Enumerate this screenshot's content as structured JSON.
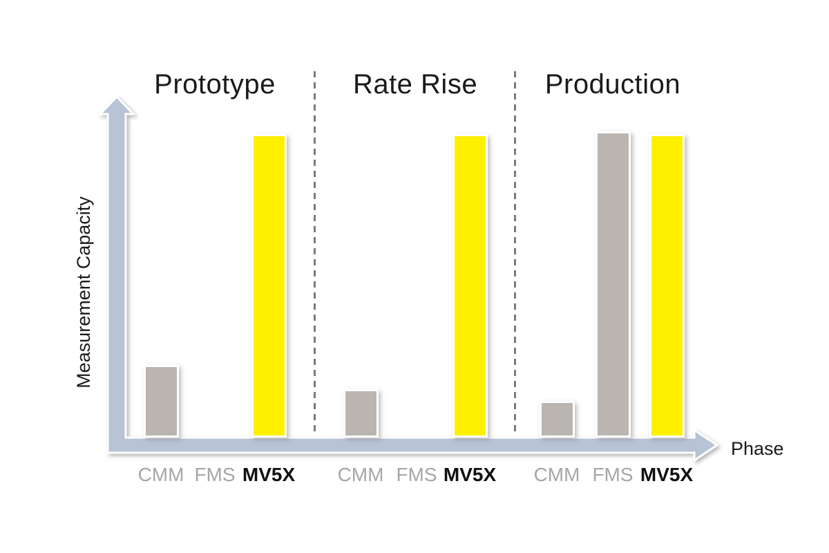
{
  "chart_data": {
    "type": "bar",
    "title": "",
    "ylabel": "Measurement Capacity",
    "xlabel": "Phase",
    "ylim": [
      0,
      110
    ],
    "grid": false,
    "legend": "none",
    "categories": [
      "CMM",
      "FMS",
      "MV5X"
    ],
    "groups": [
      {
        "label": "Prototype",
        "values": [
          24,
          0,
          100
        ]
      },
      {
        "label": "Rate Rise",
        "values": [
          16,
          0,
          100
        ]
      },
      {
        "label": "Production",
        "values": [
          12,
          101,
          100
        ]
      }
    ],
    "bar_colors": [
      "#bab5b1",
      "#bab5b1",
      "#fff000"
    ],
    "label_colors": [
      "#a6a6a6",
      "#a6a6a6",
      "#111111"
    ],
    "label_weights": [
      "normal",
      "normal",
      "bold"
    ],
    "axis_color": "#b9c3d6",
    "divider_color": "#7a7a7a",
    "background_color": "#ffffff",
    "notes": "Qualitative bar chart: no numeric tick labels shown; values are relative measurement capacity (tall bar = 100)."
  }
}
